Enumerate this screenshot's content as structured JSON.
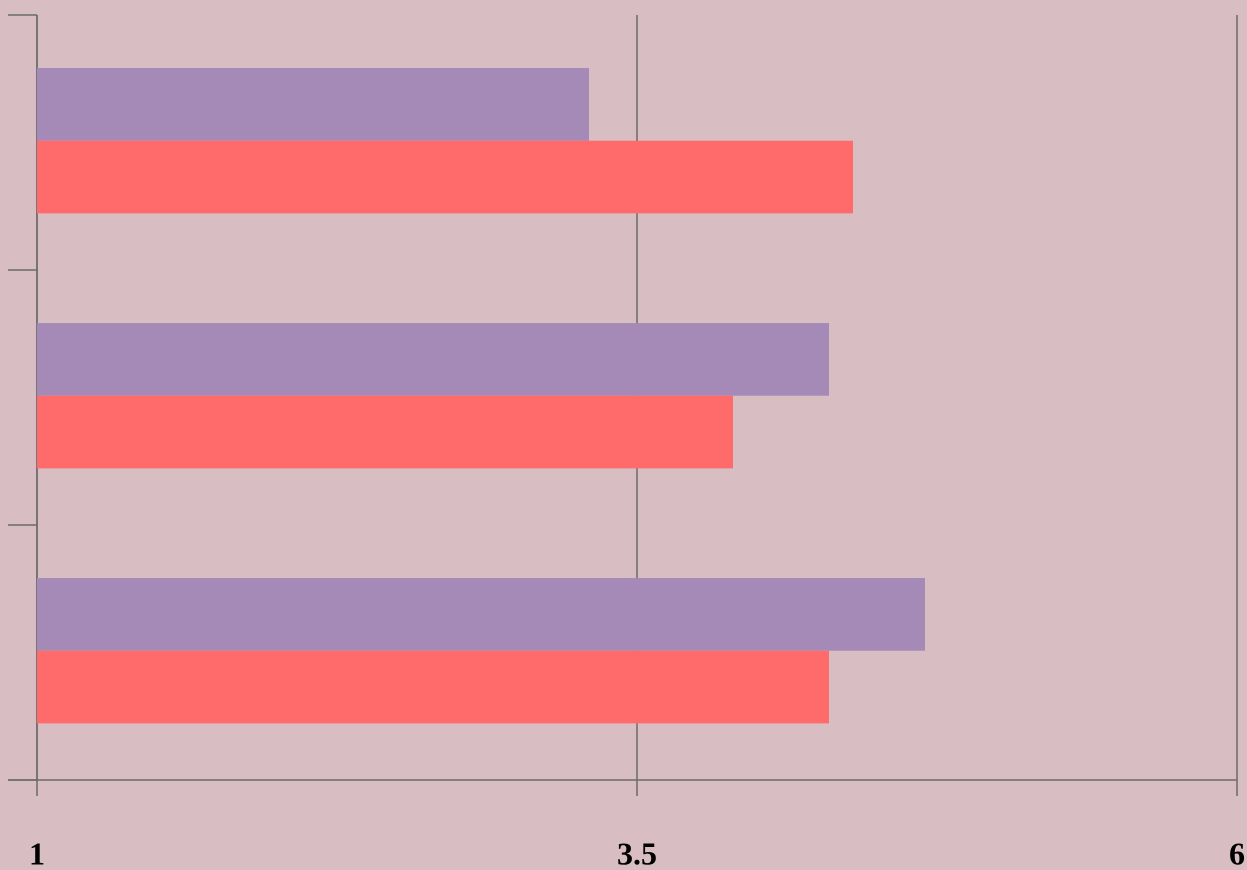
{
  "chart_data": {
    "type": "barh",
    "categories": [
      null,
      null,
      null
    ],
    "series": [
      {
        "color": "#a58ab8",
        "values": [
          3.3,
          4.3,
          4.7
        ]
      },
      {
        "color": "#ff6b6b",
        "values": [
          4.4,
          3.9,
          4.3
        ]
      }
    ],
    "xlim": [
      1,
      6
    ],
    "xticks": [
      1,
      3.5,
      6
    ],
    "grid": true
  }
}
